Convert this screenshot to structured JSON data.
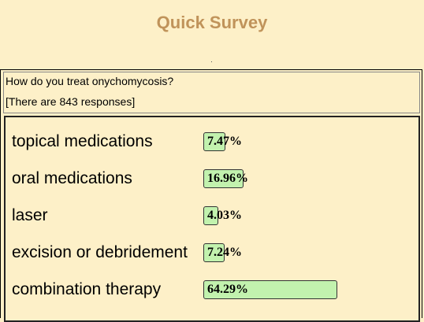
{
  "title": "Quick Survey",
  "question": "How do you treat onychomycosis?",
  "responses_note": "[There are 843 responses]",
  "options": [
    {
      "label": "topical medications",
      "value": 7.47,
      "value_label": "7.47%"
    },
    {
      "label": "oral medications",
      "value": 16.96,
      "value_label": "16.96%"
    },
    {
      "label": "laser",
      "value": 4.03,
      "value_label": "4.03%"
    },
    {
      "label": "excision or debridement",
      "value": 7.24,
      "value_label": "7.24%"
    },
    {
      "label": "combination therapy",
      "value": 64.29,
      "value_label": "64.29%"
    }
  ]
}
